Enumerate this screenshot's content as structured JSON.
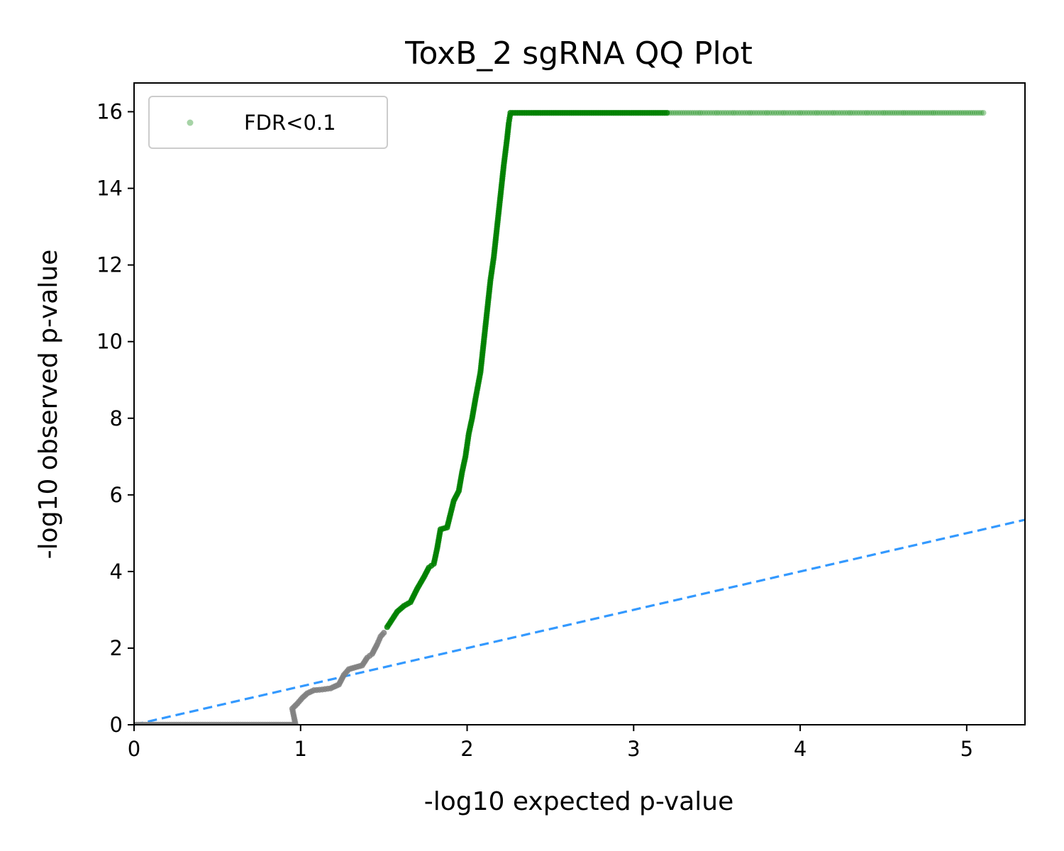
{
  "chart_data": {
    "type": "scatter",
    "title": "ToxB_2 sgRNA QQ Plot",
    "xlabel": "-log10 expected p-value",
    "ylabel": "-log10 observed p-value",
    "xlim": [
      0,
      5.35
    ],
    "ylim": [
      0,
      16.75
    ],
    "x_ticks": [
      0,
      1,
      2,
      3,
      4,
      5
    ],
    "y_ticks": [
      0,
      2,
      4,
      6,
      8,
      10,
      12,
      14,
      16
    ],
    "grid": false,
    "legend": {
      "position": "top-left",
      "entries": [
        "FDR<0.1"
      ]
    },
    "series": [
      {
        "name": "FDR<0.1",
        "color": "#008000",
        "description": "significant sgRNAs",
        "points": [
          [
            1.52,
            2.55
          ],
          [
            1.55,
            2.75
          ],
          [
            1.58,
            2.95
          ],
          [
            1.62,
            3.1
          ],
          [
            1.66,
            3.2
          ],
          [
            1.7,
            3.55
          ],
          [
            1.74,
            3.85
          ],
          [
            1.77,
            4.1
          ],
          [
            1.8,
            4.2
          ],
          [
            1.82,
            4.6
          ],
          [
            1.84,
            5.1
          ],
          [
            1.88,
            5.15
          ],
          [
            1.9,
            5.5
          ],
          [
            1.92,
            5.85
          ],
          [
            1.95,
            6.1
          ],
          [
            1.97,
            6.6
          ],
          [
            1.99,
            7.0
          ],
          [
            2.01,
            7.6
          ],
          [
            2.03,
            8.0
          ],
          [
            2.05,
            8.5
          ],
          [
            2.08,
            9.2
          ],
          [
            2.1,
            10.0
          ],
          [
            2.12,
            10.8
          ],
          [
            2.14,
            11.6
          ],
          [
            2.16,
            12.2
          ],
          [
            2.18,
            13.0
          ],
          [
            2.2,
            13.8
          ],
          [
            2.22,
            14.6
          ],
          [
            2.24,
            15.3
          ],
          [
            2.25,
            15.7
          ],
          [
            2.26,
            15.97
          ],
          [
            2.4,
            15.97
          ],
          [
            2.6,
            15.97
          ],
          [
            2.8,
            15.97
          ],
          [
            3.0,
            15.97
          ],
          [
            3.2,
            15.97
          ],
          [
            3.4,
            15.97
          ],
          [
            3.5,
            15.97
          ],
          [
            3.6,
            15.97
          ],
          [
            3.7,
            15.97
          ],
          [
            3.8,
            15.97
          ],
          [
            3.9,
            15.97
          ],
          [
            4.0,
            15.97
          ],
          [
            4.1,
            15.97
          ],
          [
            4.2,
            15.97
          ],
          [
            4.3,
            15.97
          ],
          [
            4.4,
            15.97
          ],
          [
            4.5,
            15.97
          ],
          [
            4.62,
            15.97
          ],
          [
            4.8,
            15.97
          ],
          [
            5.1,
            15.97
          ]
        ]
      },
      {
        "name": "",
        "color": "#808080",
        "description": "non-significant sgRNAs",
        "points": [
          [
            0.0,
            0.0
          ],
          [
            0.2,
            0.0
          ],
          [
            0.4,
            0.0
          ],
          [
            0.6,
            0.0
          ],
          [
            0.8,
            0.0
          ],
          [
            0.97,
            0.0
          ],
          [
            0.95,
            0.42
          ],
          [
            0.98,
            0.55
          ],
          [
            1.01,
            0.7
          ],
          [
            1.04,
            0.82
          ],
          [
            1.08,
            0.9
          ],
          [
            1.13,
            0.92
          ],
          [
            1.18,
            0.95
          ],
          [
            1.23,
            1.05
          ],
          [
            1.26,
            1.3
          ],
          [
            1.29,
            1.45
          ],
          [
            1.33,
            1.5
          ],
          [
            1.37,
            1.55
          ],
          [
            1.4,
            1.75
          ],
          [
            1.43,
            1.85
          ],
          [
            1.46,
            2.1
          ],
          [
            1.48,
            2.3
          ],
          [
            1.5,
            2.4
          ]
        ]
      }
    ],
    "reference_line": {
      "x": [
        0,
        5.35
      ],
      "y": [
        0,
        5.35
      ],
      "color": "#3399ff",
      "style": "dashed"
    }
  }
}
